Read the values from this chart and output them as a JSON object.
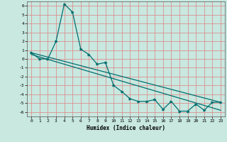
{
  "xlabel": "Humidex (Indice chaleur)",
  "xlim": [
    -0.5,
    23.5
  ],
  "ylim": [
    -6.5,
    6.5
  ],
  "yticks": [
    -6,
    -5,
    -4,
    -3,
    -2,
    -1,
    0,
    1,
    2,
    3,
    4,
    5,
    6
  ],
  "xticks": [
    0,
    1,
    2,
    3,
    4,
    5,
    6,
    7,
    8,
    9,
    10,
    11,
    12,
    13,
    14,
    15,
    16,
    17,
    18,
    19,
    20,
    21,
    22,
    23
  ],
  "bg_color": "#c8e8e0",
  "grid_color": "#e08080",
  "line_color": "#007070",
  "line1_x": [
    0,
    1,
    2,
    3,
    4,
    5,
    6,
    7,
    8,
    9,
    10,
    11,
    12,
    13,
    14,
    15,
    16,
    17,
    18,
    19,
    20,
    21,
    22,
    23
  ],
  "line1_y": [
    0.7,
    0.0,
    0.0,
    2.0,
    6.2,
    5.3,
    1.1,
    0.5,
    -0.6,
    -0.4,
    -3.0,
    -3.7,
    -4.5,
    -4.8,
    -4.8,
    -4.6,
    -5.7,
    -4.8,
    -5.9,
    -5.9,
    -5.1,
    -5.8,
    -4.9,
    -4.9
  ],
  "line2_x": [
    0,
    23
  ],
  "line2_y": [
    0.7,
    -4.9
  ],
  "line3_x": [
    0,
    23
  ],
  "line3_y": [
    0.5,
    -5.8
  ],
  "xlabel_fontsize": 5.5,
  "tick_fontsize": 4.5
}
